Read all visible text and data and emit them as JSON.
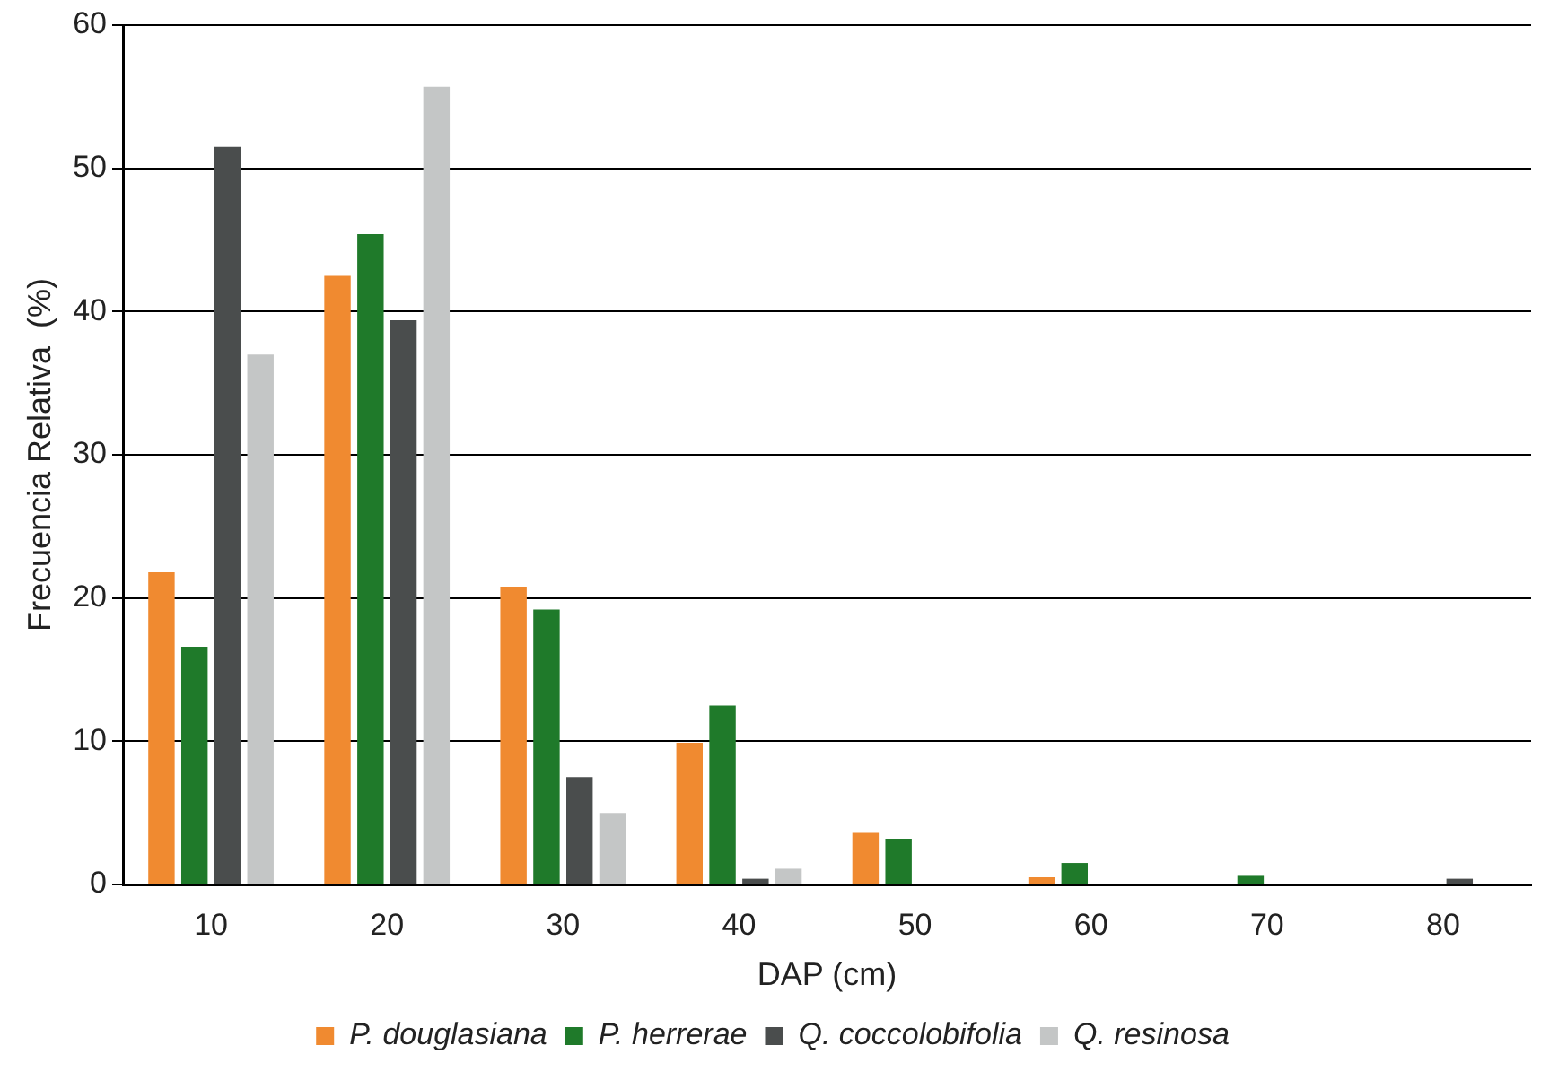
{
  "chart_data": {
    "type": "bar",
    "xlabel": "DAP (cm)",
    "ylabel": "Frecuencia Relativa  (%)",
    "categories": [
      "10",
      "20",
      "30",
      "40",
      "50",
      "60",
      "70",
      "80"
    ],
    "series": [
      {
        "name": "P. douglasiana",
        "color": "#f08a30",
        "values": [
          21.8,
          42.5,
          20.8,
          9.9,
          3.6,
          0.5,
          0,
          0
        ]
      },
      {
        "name": "P. herrerae",
        "color": "#1f7a2a",
        "values": [
          16.6,
          45.4,
          19.2,
          12.5,
          3.2,
          1.5,
          0.6,
          0
        ]
      },
      {
        "name": "Q. coccolobifolia",
        "color": "#4a4d4d",
        "values": [
          51.5,
          39.4,
          7.5,
          0.4,
          0,
          0,
          0,
          0.4
        ]
      },
      {
        "name": "Q. resinosa",
        "color": "#c4c6c6",
        "values": [
          37,
          55.7,
          5,
          1.1,
          0,
          0,
          0,
          0
        ]
      }
    ],
    "ylim": [
      0,
      60
    ],
    "yticks": [
      0,
      10,
      20,
      30,
      40,
      50,
      60
    ],
    "grid": "y",
    "legend": "bottom"
  }
}
